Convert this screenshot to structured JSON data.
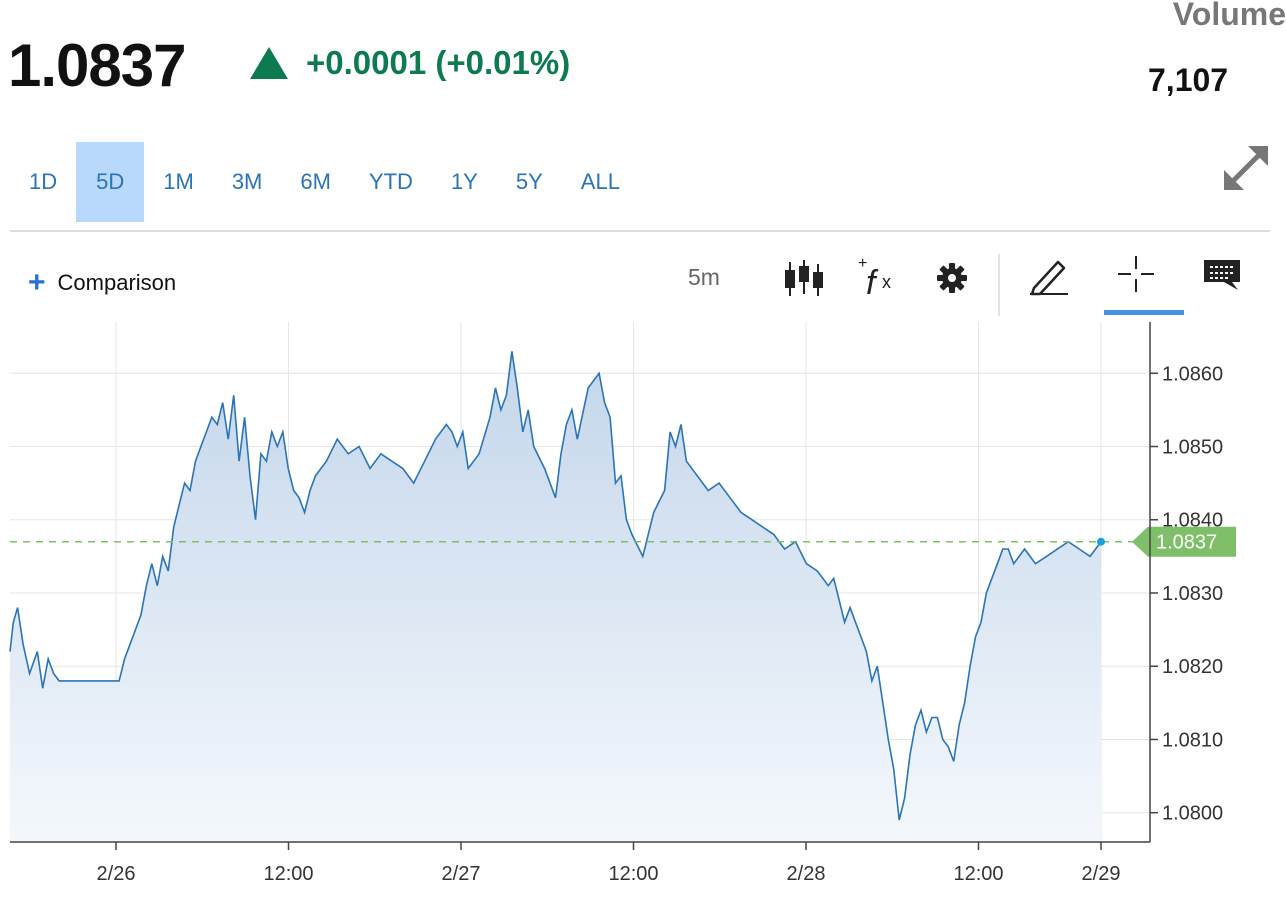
{
  "header": {
    "price": "1.0837",
    "change": "+0.0001 (+0.01%)",
    "change_color": "#0e7a4f",
    "volume_label": "Volume",
    "volume_value": "7,107"
  },
  "ranges": [
    {
      "label": "1D",
      "active": false
    },
    {
      "label": "5D",
      "active": true
    },
    {
      "label": "1M",
      "active": false
    },
    {
      "label": "3M",
      "active": false
    },
    {
      "label": "6M",
      "active": false
    },
    {
      "label": "YTD",
      "active": false
    },
    {
      "label": "1Y",
      "active": false
    },
    {
      "label": "5Y",
      "active": false
    },
    {
      "label": "ALL",
      "active": false
    }
  ],
  "toolbar": {
    "comparison_label": "Comparison",
    "interval": "5m",
    "icons": [
      "candlestick-icon",
      "function-icon",
      "gear-icon",
      "pencil-icon",
      "crosshair-icon",
      "comment-icon"
    ],
    "active_tool": "crosshair-icon"
  },
  "chart_data": {
    "type": "area",
    "x_tick_labels": [
      "2/26",
      "12:00",
      "2/27",
      "12:00",
      "2/28",
      "12:00",
      "2/29"
    ],
    "y_tick_labels": [
      "1.0860",
      "1.0850",
      "1.0840",
      "1.0830",
      "1.0820",
      "1.0810",
      "1.0800"
    ],
    "ylim": [
      1.0796,
      1.0867
    ],
    "last_value": "1.0837",
    "line_color": "#2b74b5",
    "fill_color": "#c9d9ec",
    "current_color": "#7fbf6a",
    "x": [
      0,
      0.003,
      0.007,
      0.012,
      0.018,
      0.025,
      0.03,
      0.035,
      0.04,
      0.045,
      0.05,
      0.055,
      0.06,
      0.07,
      0.08,
      0.09,
      0.1,
      0.105,
      0.11,
      0.115,
      0.12,
      0.125,
      0.13,
      0.135,
      0.14,
      0.145,
      0.15,
      0.155,
      0.16,
      0.165,
      0.17,
      0.175,
      0.18,
      0.185,
      0.19,
      0.195,
      0.2,
      0.205,
      0.21,
      0.215,
      0.22,
      0.225,
      0.23,
      0.235,
      0.24,
      0.245,
      0.25,
      0.255,
      0.26,
      0.265,
      0.27,
      0.275,
      0.28,
      0.29,
      0.3,
      0.31,
      0.32,
      0.33,
      0.34,
      0.35,
      0.36,
      0.37,
      0.38,
      0.39,
      0.4,
      0.405,
      0.41,
      0.415,
      0.42,
      0.43,
      0.44,
      0.445,
      0.45,
      0.455,
      0.46,
      0.465,
      0.47,
      0.475,
      0.48,
      0.49,
      0.5,
      0.505,
      0.51,
      0.515,
      0.52,
      0.53,
      0.54,
      0.545,
      0.55,
      0.555,
      0.56,
      0.565,
      0.57,
      0.58,
      0.59,
      0.6,
      0.605,
      0.61,
      0.615,
      0.62,
      0.63,
      0.64,
      0.65,
      0.66,
      0.67,
      0.68,
      0.69,
      0.7,
      0.71,
      0.72,
      0.73,
      0.74,
      0.75,
      0.755,
      0.76,
      0.765,
      0.77,
      0.775,
      0.78,
      0.785,
      0.79,
      0.795,
      0.8,
      0.805,
      0.81,
      0.815,
      0.82,
      0.825,
      0.83,
      0.835,
      0.84,
      0.845,
      0.85,
      0.855,
      0.86,
      0.865,
      0.87,
      0.875,
      0.88,
      0.885,
      0.89,
      0.895,
      0.9,
      0.905,
      0.91,
      0.915,
      0.92,
      0.93,
      0.94,
      0.95,
      0.96,
      0.97,
      0.98,
      0.99,
      1.0
    ],
    "values": [
      1.0822,
      1.0826,
      1.0828,
      1.0823,
      1.0819,
      1.0822,
      1.0817,
      1.0821,
      1.0819,
      1.0818,
      1.0818,
      1.0818,
      1.0818,
      1.0818,
      1.0818,
      1.0818,
      1.0818,
      1.0821,
      1.0823,
      1.0825,
      1.0827,
      1.0831,
      1.0834,
      1.0831,
      1.0835,
      1.0833,
      1.0839,
      1.0842,
      1.0845,
      1.0844,
      1.0848,
      1.085,
      1.0852,
      1.0854,
      1.0853,
      1.0856,
      1.0851,
      1.0857,
      1.0848,
      1.0854,
      1.0846,
      1.084,
      1.0849,
      1.0848,
      1.0852,
      1.085,
      1.0852,
      1.0847,
      1.0844,
      1.0843,
      1.0841,
      1.0844,
      1.0846,
      1.0848,
      1.0851,
      1.0849,
      1.085,
      1.0847,
      1.0849,
      1.0848,
      1.0847,
      1.0845,
      1.0848,
      1.0851,
      1.0853,
      1.0852,
      1.085,
      1.0852,
      1.0847,
      1.0849,
      1.0854,
      1.0858,
      1.0855,
      1.0857,
      1.0863,
      1.0858,
      1.0852,
      1.0855,
      1.085,
      1.0847,
      1.0843,
      1.0849,
      1.0853,
      1.0855,
      1.0851,
      1.0858,
      1.086,
      1.0856,
      1.0854,
      1.0845,
      1.0846,
      1.084,
      1.0838,
      1.0835,
      1.0841,
      1.0844,
      1.0852,
      1.085,
      1.0853,
      1.0848,
      1.0846,
      1.0844,
      1.0845,
      1.0843,
      1.0841,
      1.084,
      1.0839,
      1.0838,
      1.0836,
      1.0837,
      1.0834,
      1.0833,
      1.0831,
      1.0832,
      1.0829,
      1.0826,
      1.0828,
      1.0826,
      1.0824,
      1.0822,
      1.0818,
      1.082,
      1.0815,
      1.081,
      1.0806,
      1.0799,
      1.0802,
      1.0808,
      1.0812,
      1.0814,
      1.0811,
      1.0813,
      1.0813,
      1.081,
      1.0809,
      1.0807,
      1.0812,
      1.0815,
      1.082,
      1.0824,
      1.0826,
      1.083,
      1.0832,
      1.0834,
      1.0836,
      1.0836,
      1.0834,
      1.0836,
      1.0834,
      1.0835,
      1.0836,
      1.0837,
      1.0836,
      1.0835,
      1.0837
    ]
  }
}
